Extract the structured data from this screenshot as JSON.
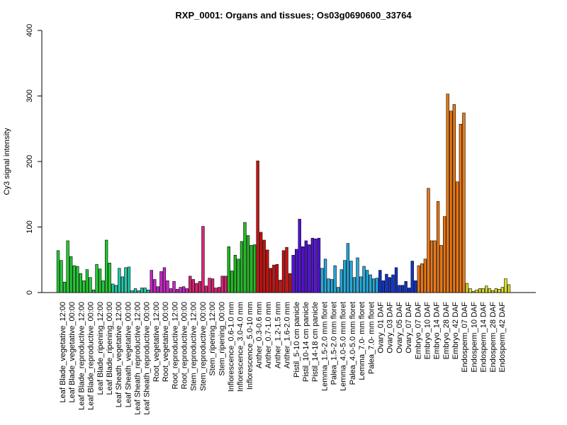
{
  "chart_data": {
    "type": "bar",
    "title": "RXP_0001: Organs and tissues; Os03g0690600_33764",
    "xlabel": "",
    "ylabel": "Cy3 signal intensity",
    "ylim": [
      0,
      400
    ],
    "yticks": [
      0,
      100,
      200,
      300,
      400
    ],
    "labels": [
      "Leaf Blade_vegetative_12:00",
      "Leaf Blade_vegetative_00:00",
      "Leaf Blade_reproductive_12:00",
      "Leaf Blade_reproductive_00:00",
      "Leaf Blade_ripening_12:00",
      "Leaf Blade_ripening_00:00",
      "Leaf Sheath_vegetative_12:00",
      "Leaf Sheath_vegetative_00:00",
      "Leaf Sheath_reproductive_12:00",
      "Leaf Sheath_reproductive_00:00",
      "Root_vegetative_12:00",
      "Root_vegetative_00:00",
      "Root_reproductive_12:00",
      "Root_reproductive_00:00",
      "Stem_reproductive_12:00",
      "Stem_reproductive_00:00",
      "Stem_ripening_12:00",
      "Stem_ripening_00:00",
      "Inflorescence_0.6-1.0 mm",
      "Inflorescence_3.0-4.0 mm",
      "Inflorescence_5.0-10 mm",
      "Anther_0.3-0.6 mm",
      "Anther_0.7-1.0 mm",
      "Anther_1.2-1.5 mm",
      "Anther_1.6-2.0 mm",
      "Pistil_5-10 cm panicle",
      "Pistil_10-14 cm panicle",
      "Pistil_14-18 cm panicle",
      "Lemma_1.5-2.0 mm floret",
      "Palea_1.5-2.0 mm floret",
      "Lemma_4.0-5.0 mm floret",
      "Palea_4.0-5.0 mm floret",
      "Lemma_7.0- mm floret",
      "Palea_7.0- mm floret",
      "Ovary_01 DAF",
      "Ovary_03 DAF",
      "Ovary_05 DAF",
      "Ovary_07 DAF",
      "Embryo_07 DAF",
      "Embryo_10 DAF",
      "Embryo_14 DAF",
      "Embryo_28 DAF",
      "Embryo_42 DAF",
      "Endosperm_07 DAF",
      "Endosperm_10 DAF",
      "Endosperm_14 DAF",
      "Endosperm_28 DAF",
      "Endosperm_42 DAF"
    ],
    "groups": [
      {
        "color": "#22CC33",
        "values": [
          64,
          49,
          16,
          79,
          55,
          41,
          40,
          29,
          18,
          35,
          23,
          4,
          43,
          36,
          18,
          80,
          45
        ]
      },
      {
        "color": "#22CCAA",
        "values": [
          13,
          11,
          37,
          24,
          38,
          39
        ]
      },
      {
        "color": "#22CCAA",
        "values": [
          3,
          6,
          3,
          7,
          7,
          4
        ]
      },
      {
        "color": "#CC22CC",
        "values": [
          34,
          20,
          9,
          32,
          38,
          18,
          6,
          17,
          5,
          8,
          9,
          6
        ]
      },
      {
        "color": "#DD2277",
        "values": [
          25,
          20,
          14,
          17,
          101,
          10,
          22,
          21,
          7,
          8,
          25,
          25
        ]
      },
      {
        "color": "#22BB22",
        "values": [
          70,
          33,
          57,
          51,
          78,
          107,
          87,
          72,
          73
        ]
      },
      {
        "color": "#CC1111",
        "values": [
          201,
          92,
          80,
          65,
          37,
          42,
          43,
          19,
          64,
          69,
          29
        ]
      },
      {
        "color": "#5511DD",
        "values": [
          57,
          66,
          112,
          70,
          79,
          73,
          83,
          82,
          83
        ]
      },
      {
        "color": "#22AADD",
        "values": [
          37,
          51,
          21,
          20,
          41,
          8,
          35,
          49,
          75,
          48,
          23,
          53,
          24,
          40,
          34,
          27,
          21,
          22
        ]
      },
      {
        "color": "#1133CC",
        "values": [
          34,
          18,
          28,
          23,
          27,
          38,
          11,
          11,
          17,
          7,
          48,
          18
        ]
      },
      {
        "color": "#EE7711",
        "values": [
          41,
          44,
          51,
          159,
          79,
          79,
          139,
          72,
          116,
          303,
          277,
          287,
          169,
          257,
          274
        ]
      },
      {
        "color": "#DDDD22",
        "values": [
          14,
          6,
          2,
          4,
          6,
          6,
          10,
          6,
          3,
          6,
          5,
          8,
          21,
          12
        ]
      }
    ]
  }
}
